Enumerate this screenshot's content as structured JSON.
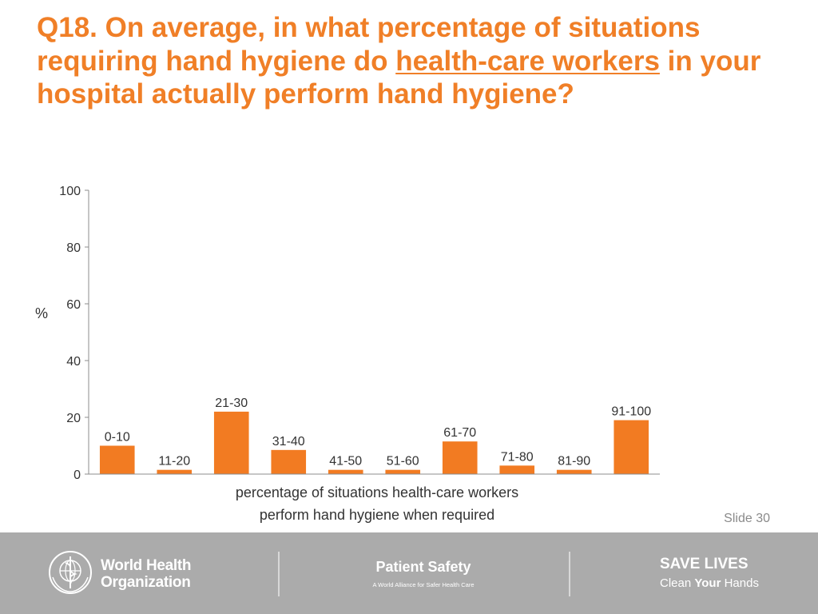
{
  "slide": {
    "title_part1": "Q18. On average, in what percentage of situations requiring hand hygiene do ",
    "title_underlined": "health-care workers",
    "title_part2": " in your hospital actually perform hand hygiene?",
    "slide_number": "Slide 30"
  },
  "footer": {
    "who_line1": "World Health",
    "who_line2": "Organization",
    "patient_safety_title": "Patient Safety",
    "patient_safety_subtitle": "A World Alliance for Safer Health Care",
    "save_lives_title": "SAVE LIVES",
    "save_lives_sub_pre": "Clean ",
    "save_lives_sub_bold": "Your",
    "save_lives_sub_post": " Hands"
  },
  "colors": {
    "accent": "#f07f27",
    "bar": "#f27b22",
    "footer_bg": "#ababab"
  },
  "chart_data": {
    "type": "bar",
    "categories": [
      "0-10",
      "11-20",
      "21-30",
      "31-40",
      "41-50",
      "51-60",
      "61-70",
      "71-80",
      "81-90",
      "91-100"
    ],
    "values": [
      10,
      1.5,
      22,
      8.5,
      1.5,
      1.5,
      11.5,
      3,
      1.5,
      19
    ],
    "ylabel": "%",
    "xlabel_line1": "percentage of situations health-care workers",
    "xlabel_line2": "perform hand hygiene when required",
    "ylim": [
      0,
      100
    ],
    "yticks": [
      0,
      20,
      40,
      60,
      80,
      100
    ],
    "grid": false,
    "legend": false,
    "labels_above_bars": true
  }
}
